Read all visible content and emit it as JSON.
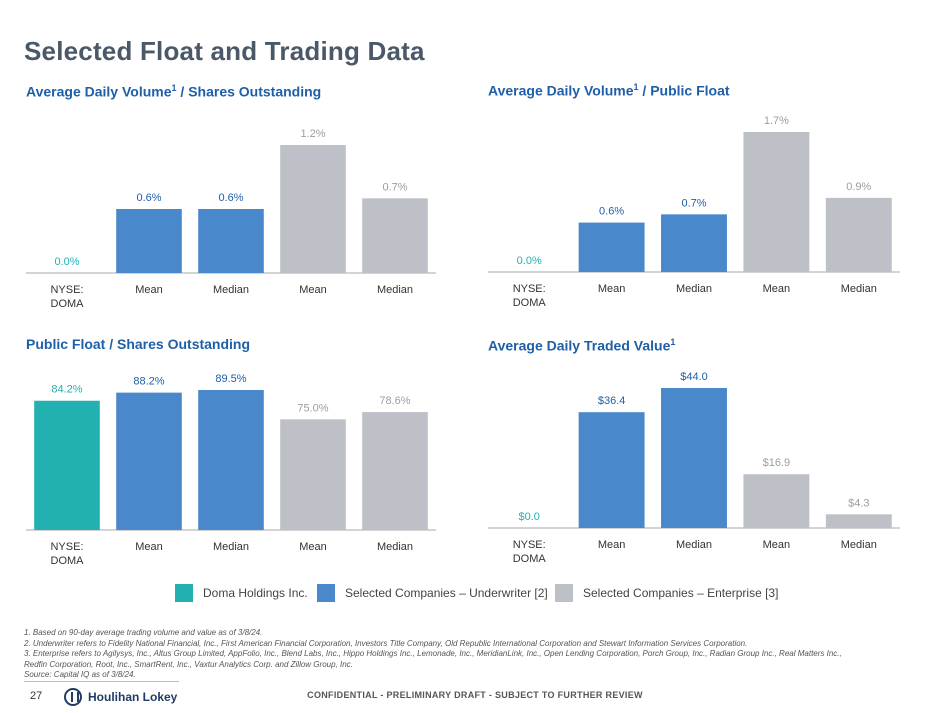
{
  "page": {
    "title": "Selected Float and Trading Data",
    "page_number": "27",
    "logo_text": "Houlihan Lokey",
    "confidential": "CONFIDENTIAL - PRELIMINARY DRAFT - SUBJECT TO FURTHER REVIEW"
  },
  "colors": {
    "doma": "#22b1b0",
    "underwriter": "#4a88cc",
    "enterprise": "#bdc0c6",
    "title_blue": "#1f5fa8"
  },
  "chart_data": [
    {
      "type": "bar",
      "title": "Average Daily Volume",
      "title_sup": "1",
      "title_rest": " / Shares Outstanding",
      "categories": [
        "NYSE:\nDOMA",
        "Mean",
        "Median",
        "Mean",
        "Median"
      ],
      "values": [
        0.0,
        0.6,
        0.6,
        1.2,
        0.7
      ],
      "labels": [
        "0.0%",
        "0.6%",
        "0.6%",
        "1.2%",
        "0.7%"
      ],
      "groups": [
        "doma",
        "underwriter",
        "underwriter",
        "enterprise",
        "enterprise"
      ],
      "ylim": [
        0,
        1.2
      ]
    },
    {
      "type": "bar",
      "title": "Average Daily Volume",
      "title_sup": "1",
      "title_rest": " / Public Float",
      "categories": [
        "NYSE:\nDOMA",
        "Mean",
        "Median",
        "Mean",
        "Median"
      ],
      "values": [
        0.0,
        0.6,
        0.7,
        1.7,
        0.9
      ],
      "labels": [
        "0.0%",
        "0.6%",
        "0.7%",
        "1.7%",
        "0.9%"
      ],
      "groups": [
        "doma",
        "underwriter",
        "underwriter",
        "enterprise",
        "enterprise"
      ],
      "ylim": [
        0,
        1.7
      ]
    },
    {
      "type": "bar",
      "title": "Public Float / Shares Outstanding",
      "title_sup": "",
      "title_rest": "",
      "categories": [
        "NYSE:\nDOMA",
        "Mean",
        "Median",
        "Mean",
        "Median"
      ],
      "values": [
        84.2,
        88.2,
        89.5,
        75.0,
        78.6
      ],
      "labels": [
        "84.2%",
        "88.2%",
        "89.5%",
        "75.0%",
        "78.6%"
      ],
      "groups": [
        "doma",
        "underwriter",
        "underwriter",
        "enterprise",
        "enterprise"
      ],
      "ylim": [
        50,
        89.5
      ]
    },
    {
      "type": "bar",
      "title": "Average Daily Traded Value",
      "title_sup": "1",
      "title_rest": "",
      "categories": [
        "NYSE:\nDOMA",
        "Mean",
        "Median",
        "Mean",
        "Median"
      ],
      "values": [
        0.0,
        36.4,
        44.0,
        16.9,
        4.3
      ],
      "labels": [
        "$0.0",
        "$36.4",
        "$44.0",
        "$16.9",
        "$4.3"
      ],
      "groups": [
        "doma",
        "underwriter",
        "underwriter",
        "enterprise",
        "enterprise"
      ],
      "ylim": [
        0,
        44.0
      ]
    }
  ],
  "legend": [
    {
      "label": "Doma Holdings Inc.",
      "group": "doma"
    },
    {
      "label": "Selected Companies – Underwriter [2]",
      "group": "underwriter"
    },
    {
      "label": "Selected Companies – Enterprise [3]",
      "group": "enterprise"
    }
  ],
  "footnotes": [
    "1. Based on 90-day average trading volume and value as of 3/8/24.",
    "2. Underwriter refers to Fidelity National Financial, Inc., First American Financial Corporation, Investors Title Company, Old Republic International Corporation and Stewart Information Services Corporation.",
    "3. Enterprise refers to Agilysys, Inc., Altus Group Limited, AppFolio, Inc., Blend Labs, Inc., Hippo Holdings Inc., Lemonade, Inc., MeridianLink, Inc., Open Lending Corporation, Porch Group, Inc., Radian Group Inc., Real Matters Inc.,",
    "Redfin Corporation, Root, Inc., SmartRent, Inc., Vaxtur Analytics Corp. and Zillow Group, Inc.",
    "Source: Capital IQ as of 3/8/24."
  ]
}
